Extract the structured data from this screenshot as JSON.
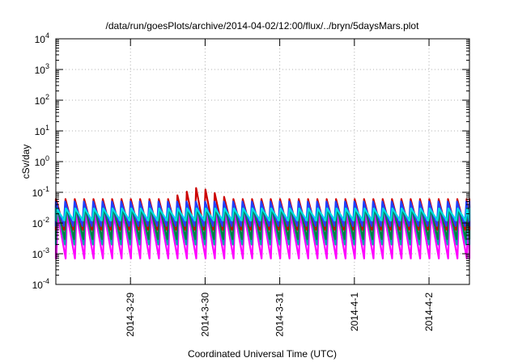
{
  "chart_data": {
    "type": "line",
    "title": "/data/run/goesPlots/archive/2014-04-02/12:00/flux/../bryn/5daysMars.plot",
    "xlabel": "Coordinated Universal Time (UTC)",
    "ylabel": "cSv/day",
    "y_scale": "log",
    "ylim": [
      0.0001,
      10000
    ],
    "xlim": [
      "2014-03-28 00:00",
      "2014-04-02 13:00"
    ],
    "grid": true,
    "legend": "none",
    "y_ticks": [
      {
        "base": "10",
        "exp": "-4"
      },
      {
        "base": "10",
        "exp": "-3"
      },
      {
        "base": "10",
        "exp": "-2"
      },
      {
        "base": "10",
        "exp": "-1"
      },
      {
        "base": "10",
        "exp": "0"
      },
      {
        "base": "10",
        "exp": "1"
      },
      {
        "base": "10",
        "exp": "2"
      },
      {
        "base": "10",
        "exp": "3"
      },
      {
        "base": "10",
        "exp": "4"
      }
    ],
    "x_ticks": [
      {
        "label": "2014-3-29",
        "at": "2014-03-29 00:00"
      },
      {
        "label": "2014-3-30",
        "at": "2014-03-30 00:00"
      },
      {
        "label": "2014-3-31",
        "at": "2014-03-31 00:00"
      },
      {
        "label": "2014-4-1",
        "at": "2014-04-01 00:00"
      },
      {
        "label": "2014-4-2",
        "at": "2014-04-02 00:00"
      }
    ],
    "oscillation_period_hours": 3,
    "series": [
      {
        "color": "#ff00ff",
        "peak": 0.02,
        "trough": 0.0007,
        "phase_hours": 0.6
      },
      {
        "color": "#00a8a8",
        "peak": 0.035,
        "trough": 0.002,
        "phase_hours": 0.4
      },
      {
        "color": "#008040",
        "peak": 0.04,
        "trough": 0.003,
        "phase_hours": 0.3
      },
      {
        "color": "#cc0000",
        "peak": 0.06,
        "trough": 0.006,
        "phase_hours": 0.1,
        "spike": {
          "at": "2014-03-29 22:00",
          "peak": 0.15
        }
      },
      {
        "color": "#2040ff",
        "peak": 0.05,
        "trough": 0.008,
        "phase_hours": 0.0
      },
      {
        "color": "#00e0e0",
        "peak": 0.03,
        "trough": 0.012,
        "phase_hours": 0.2
      }
    ]
  }
}
